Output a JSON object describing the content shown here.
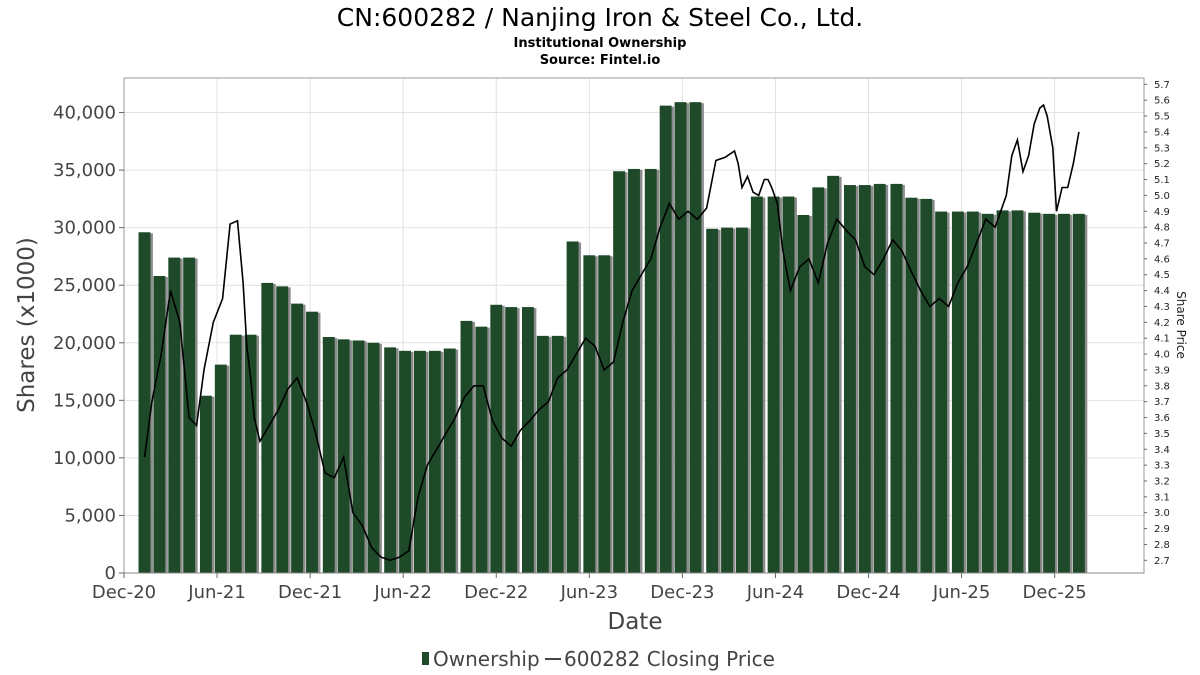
{
  "header": {
    "title": "CN:600282 / Nanjing Iron & Steel Co., Ltd.",
    "subtitle": "Institutional Ownership",
    "source": "Source: Fintel.io"
  },
  "legend": {
    "ownership_label": "Ownership",
    "price_label": "600282 Closing Price"
  },
  "chart_data": {
    "type": "bar",
    "title": "CN:600282 / Nanjing Iron & Steel Co., Ltd.",
    "xlabel": "Date",
    "ylabel": "Shares (x1000)",
    "y2label": "Share Price",
    "ylim": [
      0,
      43000
    ],
    "y2lim": [
      2.62,
      5.74
    ],
    "x_tick_labels": [
      "Dec-20",
      "Jun-21",
      "Dec-21",
      "Jun-22",
      "Dec-22",
      "Jun-23",
      "Dec-23",
      "Jun-24",
      "Dec-24",
      "Jun-25",
      "Dec-25"
    ],
    "y_tick_labels": [
      "0",
      "5,000",
      "10,000",
      "15,000",
      "20,000",
      "25,000",
      "30,000",
      "35,000",
      "40,000"
    ],
    "y_tick_values": [
      0,
      5000,
      10000,
      15000,
      20000,
      25000,
      30000,
      35000,
      40000
    ],
    "y2_tick_labels": [
      "2.7",
      "2.8",
      "2.9",
      "3.0",
      "3.1",
      "3.2",
      "3.3",
      "3.4",
      "3.5",
      "3.6",
      "3.7",
      "3.8",
      "3.9",
      "4.0",
      "4.1",
      "4.2",
      "4.3",
      "4.4",
      "4.5",
      "4.6",
      "4.7",
      "4.8",
      "4.9",
      "5.0",
      "5.1",
      "5.2",
      "5.3",
      "5.4",
      "5.5",
      "5.6",
      "5.7"
    ],
    "grid": true,
    "legend_position": "bottom-center",
    "colors": {
      "bar": "#1e4a2a",
      "bar_shadow": "#8c8c8c",
      "price_line": "#000000"
    },
    "series": [
      {
        "name": "Ownership",
        "kind": "bar",
        "x": [
          2021.03,
          2021.11,
          2021.19,
          2021.27,
          2021.36,
          2021.44,
          2021.52,
          2021.6,
          2021.69,
          2021.77,
          2021.85,
          2021.93,
          2022.02,
          2022.1,
          2022.18,
          2022.26,
          2022.35,
          2022.43,
          2022.51,
          2022.59,
          2022.67,
          2022.76,
          2022.84,
          2022.92,
          2023.0,
          2023.09,
          2023.17,
          2023.25,
          2023.33,
          2023.42,
          2023.5,
          2023.58,
          2023.66,
          2023.75,
          2023.83,
          2023.91,
          2023.99,
          2024.08,
          2024.16,
          2024.24,
          2024.32,
          2024.41,
          2024.49,
          2024.57,
          2024.65,
          2024.73,
          2024.82,
          2024.9,
          2024.98,
          2025.07,
          2025.15,
          2025.23,
          2025.31,
          2025.4,
          2025.48,
          2025.56,
          2025.64,
          2025.72,
          2025.81,
          2025.89,
          2025.97,
          2026.05
        ],
        "values": [
          29600,
          25800,
          27400,
          27400,
          15400,
          18100,
          20700,
          20700,
          25200,
          24900,
          23400,
          22700,
          20500,
          20300,
          20200,
          20000,
          19600,
          19300,
          19300,
          19300,
          19500,
          21900,
          21400,
          23300,
          23100,
          23100,
          20600,
          20600,
          28800,
          27600,
          27600,
          34900,
          35100,
          35100,
          40600,
          40900,
          40900,
          29900,
          30000,
          30000,
          32700,
          32700,
          32700,
          31100,
          33500,
          34500,
          33700,
          33700,
          33800,
          33800,
          32600,
          32500,
          31400,
          31400,
          31400,
          31200,
          31500,
          31500,
          31300,
          31200,
          31200,
          31200
        ]
      },
      {
        "name": "600282 Closing Price",
        "kind": "line",
        "x": [
          2021.03,
          2021.07,
          2021.12,
          2021.17,
          2021.22,
          2021.27,
          2021.31,
          2021.35,
          2021.4,
          2021.45,
          2021.49,
          2021.53,
          2021.56,
          2021.58,
          2021.6,
          2021.62,
          2021.65,
          2021.7,
          2021.75,
          2021.8,
          2021.85,
          2021.9,
          2021.95,
          2022.0,
          2022.05,
          2022.1,
          2022.15,
          2022.2,
          2022.25,
          2022.3,
          2022.35,
          2022.4,
          2022.45,
          2022.5,
          2022.55,
          2022.6,
          2022.65,
          2022.7,
          2022.75,
          2022.8,
          2022.85,
          2022.9,
          2022.95,
          2023.0,
          2023.05,
          2023.1,
          2023.15,
          2023.2,
          2023.25,
          2023.3,
          2023.35,
          2023.4,
          2023.45,
          2023.5,
          2023.55,
          2023.6,
          2023.65,
          2023.7,
          2023.75,
          2023.8,
          2023.85,
          2023.9,
          2023.95,
          2024.0,
          2024.05,
          2024.1,
          2024.15,
          2024.2,
          2024.22,
          2024.24,
          2024.27,
          2024.3,
          2024.33,
          2024.36,
          2024.38,
          2024.4,
          2024.43,
          2024.46,
          2024.5,
          2024.55,
          2024.6,
          2024.65,
          2024.7,
          2024.75,
          2024.8,
          2024.85,
          2024.9,
          2024.95,
          2025.0,
          2025.05,
          2025.1,
          2025.15,
          2025.2,
          2025.25,
          2025.3,
          2025.35,
          2025.4,
          2025.45,
          2025.5,
          2025.55,
          2025.6,
          2025.63,
          2025.66,
          2025.69,
          2025.72,
          2025.75,
          2025.78,
          2025.81,
          2025.84,
          2025.86,
          2025.88,
          2025.91,
          2025.93,
          2025.96,
          2025.99,
          2026.02,
          2026.05
        ],
        "values": [
          3.35,
          3.7,
          4.0,
          4.4,
          4.2,
          3.6,
          3.55,
          3.9,
          4.2,
          4.35,
          4.82,
          4.84,
          4.45,
          4.05,
          3.85,
          3.6,
          3.45,
          3.55,
          3.65,
          3.78,
          3.85,
          3.7,
          3.5,
          3.25,
          3.22,
          3.35,
          3.0,
          2.92,
          2.78,
          2.72,
          2.7,
          2.72,
          2.76,
          3.1,
          3.3,
          3.4,
          3.5,
          3.6,
          3.73,
          3.8,
          3.8,
          3.58,
          3.47,
          3.42,
          3.52,
          3.58,
          3.65,
          3.7,
          3.85,
          3.9,
          4.0,
          4.1,
          4.05,
          3.9,
          3.95,
          4.2,
          4.4,
          4.5,
          4.6,
          4.8,
          4.95,
          4.85,
          4.9,
          4.85,
          4.92,
          5.22,
          5.24,
          5.28,
          5.2,
          5.05,
          5.12,
          5.02,
          5.0,
          5.1,
          5.1,
          5.05,
          4.95,
          4.65,
          4.4,
          4.55,
          4.6,
          4.45,
          4.7,
          4.85,
          4.78,
          4.72,
          4.55,
          4.5,
          4.6,
          4.72,
          4.65,
          4.52,
          4.4,
          4.3,
          4.35,
          4.3,
          4.45,
          4.55,
          4.7,
          4.85,
          4.8,
          4.9,
          5.0,
          5.25,
          5.35,
          5.15,
          5.25,
          5.45,
          5.55,
          5.57,
          5.5,
          5.3,
          4.9,
          5.05,
          5.05,
          5.2,
          5.4
        ]
      }
    ]
  }
}
